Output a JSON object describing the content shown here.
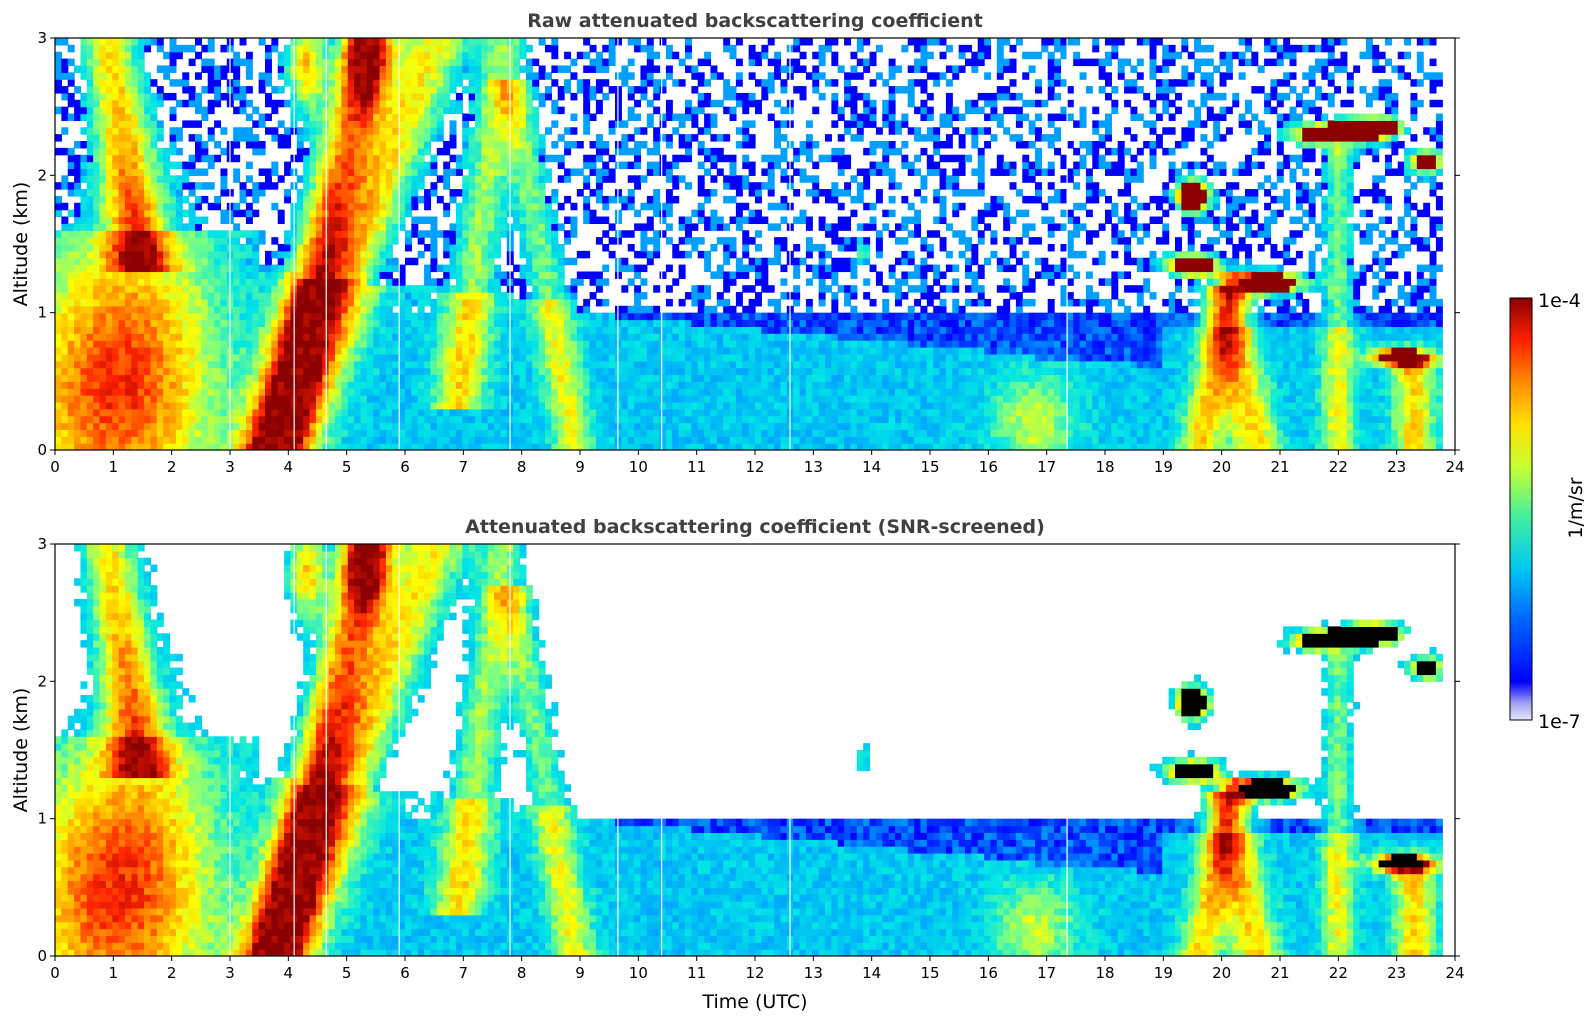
{
  "chart_data": [
    {
      "type": "heatmap",
      "title": "Raw attenuated backscattering coefficient",
      "xlabel": "",
      "ylabel": "Altitude (km)",
      "xlim": [
        0,
        24
      ],
      "ylim": [
        0,
        3
      ],
      "x_ticks": [
        "0",
        "1",
        "2",
        "3",
        "4",
        "5",
        "6",
        "7",
        "8",
        "9",
        "10",
        "11",
        "12",
        "13",
        "14",
        "15",
        "16",
        "17",
        "18",
        "19",
        "20",
        "21",
        "22",
        "23",
        "24"
      ],
      "y_ticks": [
        "0",
        "1",
        "2",
        "3"
      ],
      "screened": false
    },
    {
      "type": "heatmap",
      "title": "Attenuated backscattering coefficient (SNR-screened)",
      "xlabel": "Time (UTC)",
      "ylabel": "Altitude (km)",
      "xlim": [
        0,
        24
      ],
      "ylim": [
        0,
        3
      ],
      "x_ticks": [
        "0",
        "1",
        "2",
        "3",
        "4",
        "5",
        "6",
        "7",
        "8",
        "9",
        "10",
        "11",
        "12",
        "13",
        "14",
        "15",
        "16",
        "17",
        "18",
        "19",
        "20",
        "21",
        "22",
        "23",
        "24"
      ],
      "y_ticks": [
        "0",
        "1",
        "2",
        "3"
      ],
      "screened": true
    }
  ],
  "colorbar": {
    "min_label": "1e-7",
    "max_label": "1e-4",
    "unit_label": "1/m/sr",
    "scale": "log",
    "colormap": [
      "#e6e6fa",
      "#0000ff",
      "#00a0ff",
      "#00e6e6",
      "#7fff7f",
      "#ffff00",
      "#ff9900",
      "#ff2200",
      "#8b0000"
    ],
    "saturated_color": "#000000"
  }
}
